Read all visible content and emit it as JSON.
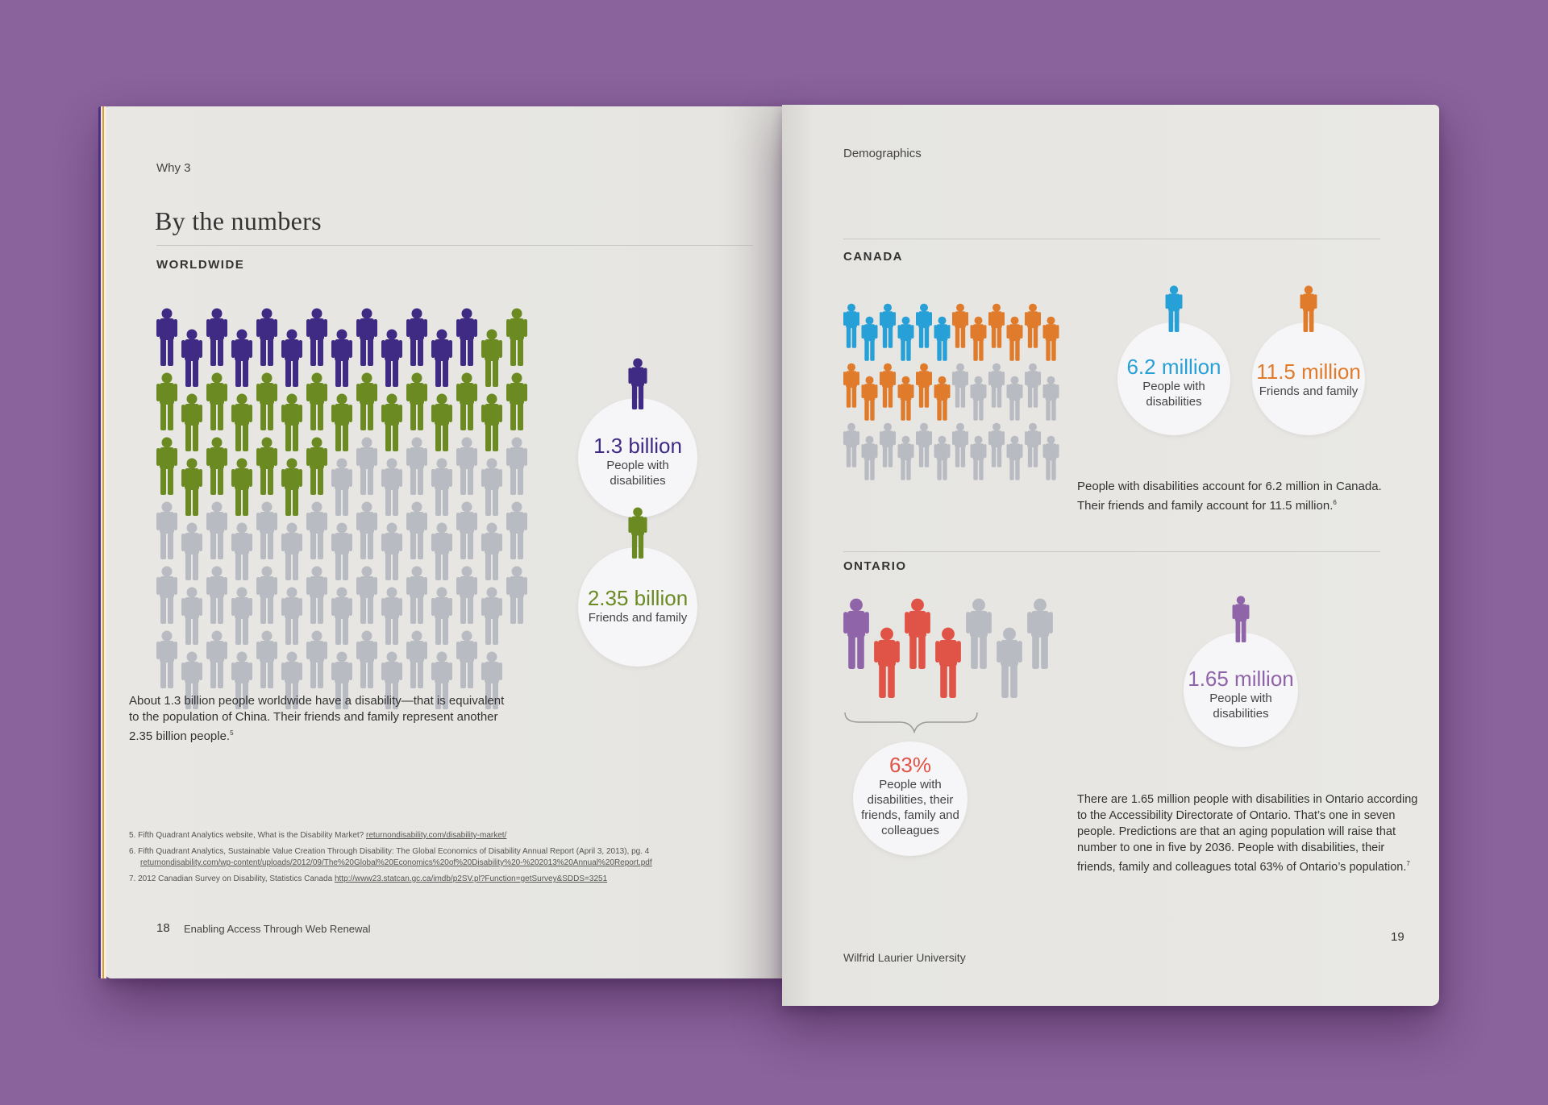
{
  "colors": {
    "background": "#8a629c",
    "world_disability": "#3f2a84",
    "world_friends": "#6b8b22",
    "canada_disability": "#26a0d7",
    "canada_friends": "#e07b2c",
    "ontario_disability": "#8f64a9",
    "ontario_friends": "#e05447",
    "neutral": "#b9bbc2"
  },
  "left": {
    "running_head": "Why 3",
    "title": "By the numbers",
    "section": "WORLDWIDE",
    "stat1": {
      "value": "1.3 billion",
      "label_1": "People with",
      "label_2": "disabilities"
    },
    "stat2": {
      "value": "2.35 billion",
      "label_1": "Friends and family"
    },
    "body_1": "About 1.3 billion people worldwide have a disability—that is equivalent",
    "body_2": "to the population of China. Their friends and family represent another",
    "body_3": "2.35 billion people.",
    "body_sup": "5",
    "footnotes": [
      {
        "text": "5.  Fifth Quadrant Analytics website, What is the Disability Market? ",
        "link": "returnondisability.com/disability-market/"
      },
      {
        "text": "6.  Fifth Quadrant Analytics, Sustainable Value Creation Through Disability: The Global Economics of Disability Annual Report (April 3, 2013), pg. 4",
        "link": "returnondisability.com/wp-content/uploads/2012/09/The%20Global%20Economics%20of%20Disability%20-%202013%20Annual%20Report.pdf"
      },
      {
        "text": "7.  2012 Canadian Survey on Disability, Statistics Canada ",
        "link": "http://www23.statcan.gc.ca/imdb/p2SV.pl?Function=getSurvey&SDDS=3251"
      }
    ],
    "page_number": "18",
    "footer": "Enabling Access Through Web Renewal"
  },
  "right": {
    "running_head": "Demographics",
    "canada": {
      "section": "CANADA",
      "stat1": {
        "value": "6.2 million",
        "label_1": "People with",
        "label_2": "disabilities"
      },
      "stat2": {
        "value": "11.5 million",
        "label_1": "Friends and family"
      },
      "body_1": "People with disabilities account for 6.2 million in Canada.",
      "body_2": "Their friends and family account for 11.5 million.",
      "body_sup": "6"
    },
    "ontario": {
      "section": "ONTARIO",
      "stat1": {
        "value": "1.65 million",
        "label_1": "People with",
        "label_2": "disabilities"
      },
      "stat2": {
        "value": "63%",
        "label_1": "People with",
        "label_2": "disabilities, their",
        "label_3": "friends, family and",
        "label_4": "colleagues"
      },
      "body_1": "There are 1.65 million people with disabilities in Ontario according",
      "body_2": "to the Accessibility Directorate of Ontario. That’s one in seven",
      "body_3": "people. Predictions are that an aging population will raise that",
      "body_4": "number to one in five by 2036. People with disabilities, their",
      "body_5": "friends, family and colleagues total 63% of Ontario’s population.",
      "body_sup": "7"
    },
    "page_number": "19",
    "footer": "Wilfrid Laurier University"
  }
}
